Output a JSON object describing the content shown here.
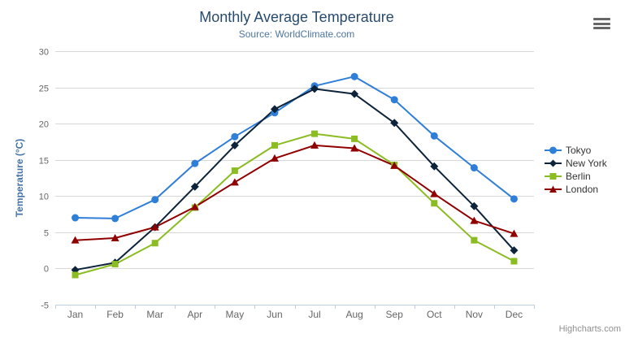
{
  "chart_data": {
    "type": "line",
    "title": "Monthly Average Temperature",
    "subtitle": "Source: WorldClimate.com",
    "categories": [
      "Jan",
      "Feb",
      "Mar",
      "Apr",
      "May",
      "Jun",
      "Jul",
      "Aug",
      "Sep",
      "Oct",
      "Nov",
      "Dec"
    ],
    "xlabel": "",
    "ylabel": "Temperature (°C)",
    "ylim": [
      -5,
      30
    ],
    "ytick_step": 5,
    "grid": true,
    "legend_position": "right",
    "series": [
      {
        "name": "Tokyo",
        "color": "#2f7ed8",
        "marker": "circle",
        "values": [
          7.0,
          6.9,
          9.5,
          14.5,
          18.2,
          21.5,
          25.2,
          26.5,
          23.3,
          18.3,
          13.9,
          9.6
        ]
      },
      {
        "name": "New York",
        "color": "#0d233a",
        "marker": "diamond",
        "values": [
          -0.2,
          0.8,
          5.7,
          11.3,
          17.0,
          22.0,
          24.8,
          24.1,
          20.1,
          14.1,
          8.6,
          2.5
        ]
      },
      {
        "name": "Berlin",
        "color": "#8bbc21",
        "marker": "square",
        "values": [
          -0.9,
          0.6,
          3.5,
          8.4,
          13.5,
          17.0,
          18.6,
          17.9,
          14.3,
          9.0,
          3.9,
          1.0
        ]
      },
      {
        "name": "London",
        "color": "#910000",
        "marker": "triangle",
        "values": [
          3.9,
          4.2,
          5.7,
          8.5,
          11.9,
          15.2,
          17.0,
          16.6,
          14.2,
          10.3,
          6.6,
          4.8
        ]
      }
    ]
  },
  "credits": {
    "label": "Highcharts.com"
  },
  "export_menu": {
    "icon": "hamburger-icon"
  },
  "colors": {
    "title": "#274b6d",
    "subtitle": "#4d759e",
    "axis_title": "#4572a7",
    "tick_label": "#666666",
    "grid_line": "#d8d8d8",
    "axis_line": "#c0d0e0",
    "legend_text": "#333333",
    "credits_text": "#909090",
    "menu_icon": "#666666",
    "background": "#ffffff"
  }
}
